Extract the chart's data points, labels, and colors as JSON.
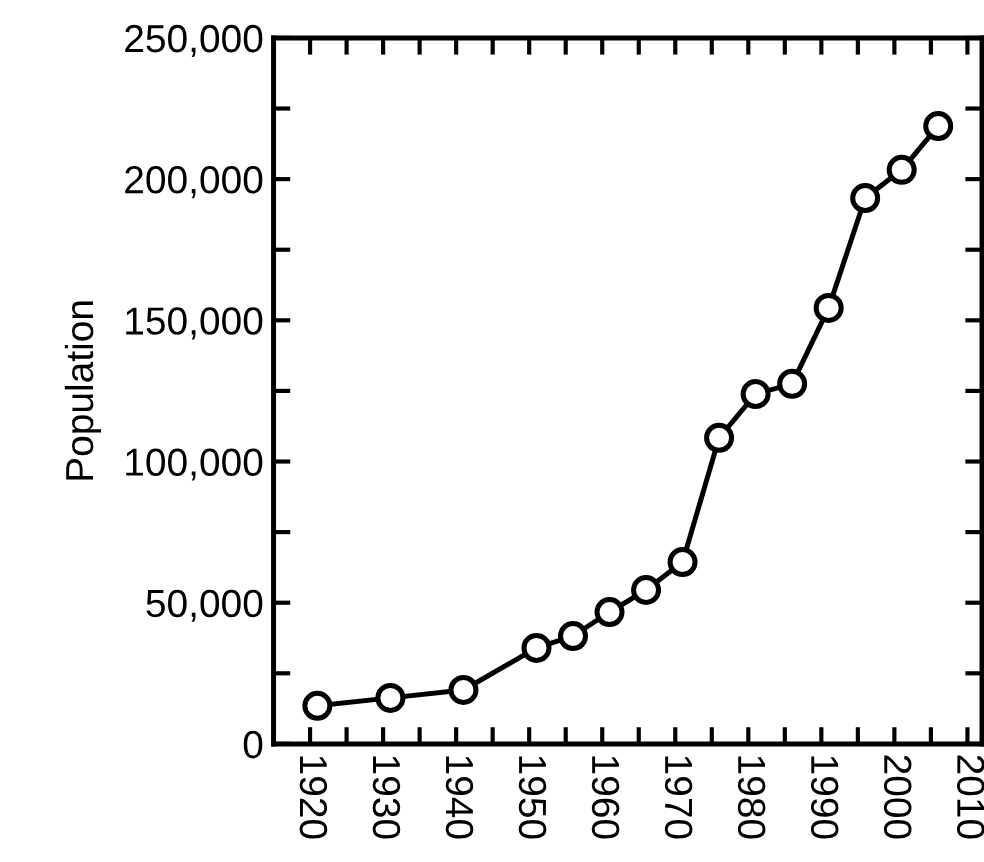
{
  "chart_data": {
    "type": "line",
    "ylabel": "Population",
    "x": [
      1921,
      1931,
      1941,
      1951,
      1956,
      1961,
      1966,
      1971,
      1976,
      1981,
      1986,
      1991,
      1996,
      2001,
      2006
    ],
    "series": [
      {
        "color": "#000000",
        "values": [
          13500,
          16300,
          19100,
          34000,
          38200,
          46700,
          54500,
          64400,
          108400,
          123900,
          127500,
          154400,
          193300,
          203300,
          218800
        ]
      }
    ],
    "xlim": [
      1915,
      2012
    ],
    "ylim": [
      0,
      250000
    ],
    "xticks": [
      1920,
      {
        "value": 1925,
        "label": null
      },
      1930,
      {
        "value": 1935,
        "label": null
      },
      1940,
      {
        "value": 1945,
        "label": null
      },
      1950,
      {
        "value": 1955,
        "label": null
      },
      1960,
      {
        "value": 1965,
        "label": null
      },
      1970,
      {
        "value": 1975,
        "label": null
      },
      1980,
      {
        "value": 1985,
        "label": null
      },
      1990,
      {
        "value": 1995,
        "label": null
      },
      2000,
      {
        "value": 2005,
        "label": null
      },
      2010
    ],
    "yticks": [
      {
        "value": 0,
        "label": "0"
      },
      {
        "value": 25000,
        "label": null
      },
      {
        "value": 50000,
        "label": "50,000"
      },
      {
        "value": 75000,
        "label": null
      },
      {
        "value": 100000,
        "label": "100,000"
      },
      {
        "value": 125000,
        "label": null
      },
      {
        "value": 150000,
        "label": "150,000"
      },
      {
        "value": 175000,
        "label": null
      },
      {
        "value": 200000,
        "label": "200,000"
      },
      {
        "value": 225000,
        "label": null
      },
      {
        "value": 250000,
        "label": "250,000"
      }
    ],
    "marker": "circle",
    "line_style": "solid"
  }
}
